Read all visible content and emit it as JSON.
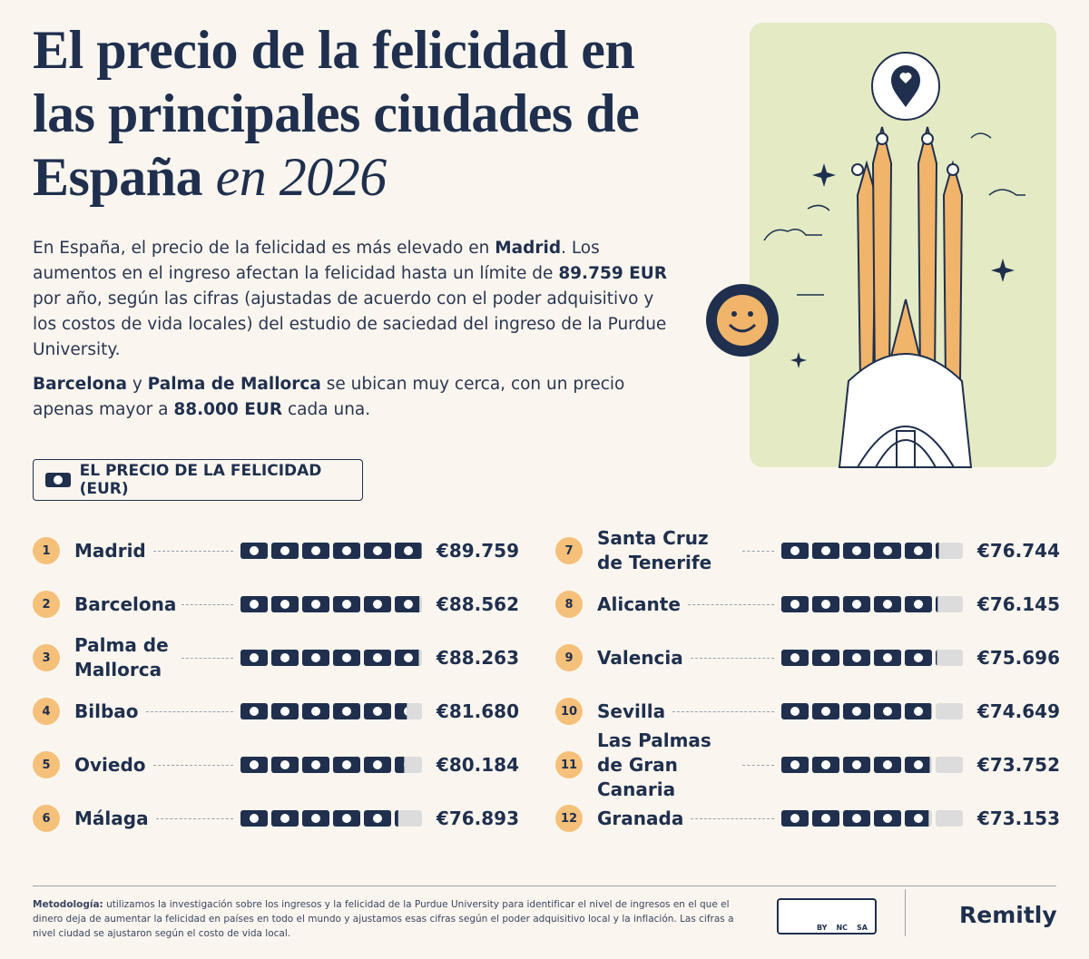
{
  "chart_data": {
    "type": "pictogram",
    "title": "El precio de la felicidad en las principales ciudades de España",
    "title_suffix": "en 2026",
    "intro": [
      [
        {
          "text": "En España, el precio de la felicidad es más elevado en "
        },
        {
          "text": "Madrid",
          "bold": true
        },
        {
          "text": ". Los aumentos en el ingreso afectan la felicidad hasta un límite de "
        },
        {
          "text": "89.759 EUR",
          "bold": true
        },
        {
          "text": " por año, según las cifras (ajustadas de acuerdo con el poder adquisitivo y los costos de vida locales) del estudio de saciedad del ingreso de la Purdue University."
        }
      ],
      [
        {
          "text": "Barcelona",
          "bold": true
        },
        {
          "text": " y "
        },
        {
          "text": "Palma de Mallorca",
          "bold": true
        },
        {
          "text": " se ubican muy cerca, con un precio apenas mayor a "
        },
        {
          "text": "88.000 EUR",
          "bold": true
        },
        {
          "text": " cada una."
        }
      ]
    ],
    "legend_label": "EL PRECIO DE LA FELICIDAD (EUR)",
    "ranks": [
      1,
      2,
      3,
      4,
      5,
      6,
      7,
      8,
      9,
      10,
      11,
      12
    ],
    "categories": [
      "Madrid",
      "Barcelona",
      "Palma de Mallorca",
      "Bilbao",
      "Oviedo",
      "Málaga",
      "Santa Cruz de Tenerife",
      "Alicante",
      "Valencia",
      "Sevilla",
      "Las Palmas de Gran Canaria",
      "Granada"
    ],
    "values": [
      89759,
      88562,
      88263,
      81680,
      80184,
      76893,
      76744,
      76145,
      75696,
      74649,
      73752,
      73153
    ],
    "value_labels": [
      "€89.759",
      "€88.562",
      "€88.263",
      "€81.680",
      "€80.184",
      "€76.893",
      "€76.744",
      "€76.145",
      "€75.696",
      "€74.649",
      "€73.752",
      "€73.153"
    ],
    "xlim": [
      0,
      90000
    ],
    "color": "#1f2f4d",
    "empty_color": "#dcdcdc",
    "badge_color": "#f5c07a",
    "methodology_label": "Metodología:",
    "methodology": "utilizamos la investigación sobre los ingresos y la felicidad de la Purdue University para identificar el nivel de ingresos en el que el dinero deja de aumentar la felicidad en países en todo el mundo y ajustamos esas cifras según el poder adquisitivo local y la inflación. Las cifras a nivel ciudad se ajustaron según el costo de vida local.",
    "license": [
      "BY",
      "NC",
      "SA"
    ],
    "brand": "Remitly"
  }
}
